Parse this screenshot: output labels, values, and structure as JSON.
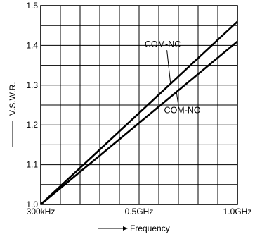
{
  "chart_data": {
    "type": "line",
    "title": "",
    "xlabel": "Frequency",
    "ylabel": "V.S.W.R.",
    "x_ticks": [
      "300kHz",
      "0.5GHz",
      "1.0GHz"
    ],
    "x_tick_values": [
      0,
      0.5,
      1.0
    ],
    "xlim": [
      0,
      1.0
    ],
    "ylim": [
      1.0,
      1.5
    ],
    "y_ticks": [
      1.0,
      1.1,
      1.2,
      1.3,
      1.4,
      1.5
    ],
    "y_tick_labels": [
      "1.0",
      "1.1",
      "1.2",
      "1.3",
      "1.4",
      "1.5"
    ],
    "grid": true,
    "x_grid_divisions": 10,
    "y_grid_divisions": 10,
    "series": [
      {
        "name": "COM-NC",
        "x": [
          0,
          1.0
        ],
        "y": [
          1.0,
          1.46
        ]
      },
      {
        "name": "COM-NO",
        "x": [
          0,
          1.0
        ],
        "y": [
          1.0,
          1.41
        ]
      }
    ],
    "annotations": [
      {
        "text": "COM-NC",
        "series": "COM-NC",
        "label_x": 0.62,
        "label_y": 1.395,
        "arrow_to_x": 0.66
      },
      {
        "text": "COM-NO",
        "series": "COM-NO",
        "label_x": 0.72,
        "label_y": 1.23,
        "arrow_to_x": 0.69
      }
    ]
  }
}
